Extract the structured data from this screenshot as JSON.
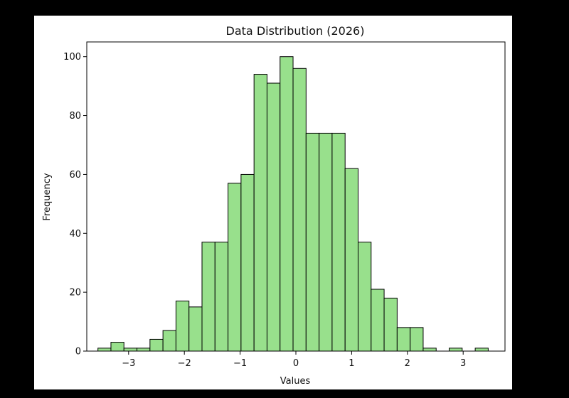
{
  "chart_data": {
    "type": "bar",
    "title": "Data Distribution (2026)",
    "xlabel": "Values",
    "ylabel": "Frequency",
    "xlim": [
      -3.75,
      3.75
    ],
    "ylim": [
      0,
      105
    ],
    "xticks": [
      -3,
      -2,
      -1,
      0,
      1,
      2,
      3
    ],
    "xtick_labels": [
      "−3",
      "−2",
      "−1",
      "0",
      "1",
      "2",
      "3"
    ],
    "yticks": [
      0,
      20,
      40,
      60,
      80,
      100
    ],
    "ytick_labels": [
      "0",
      "20",
      "40",
      "60",
      "80",
      "100"
    ],
    "bin_start": -3.55,
    "bin_width": 0.2333,
    "values": [
      1,
      3,
      1,
      1,
      4,
      7,
      17,
      15,
      37,
      37,
      57,
      60,
      94,
      91,
      100,
      96,
      74,
      74,
      74,
      62,
      37,
      21,
      18,
      8,
      8,
      1,
      0,
      1,
      0,
      1
    ],
    "grid": false,
    "colors": {
      "bar_fill": "#98e08c",
      "bar_edge": "#000000"
    }
  }
}
